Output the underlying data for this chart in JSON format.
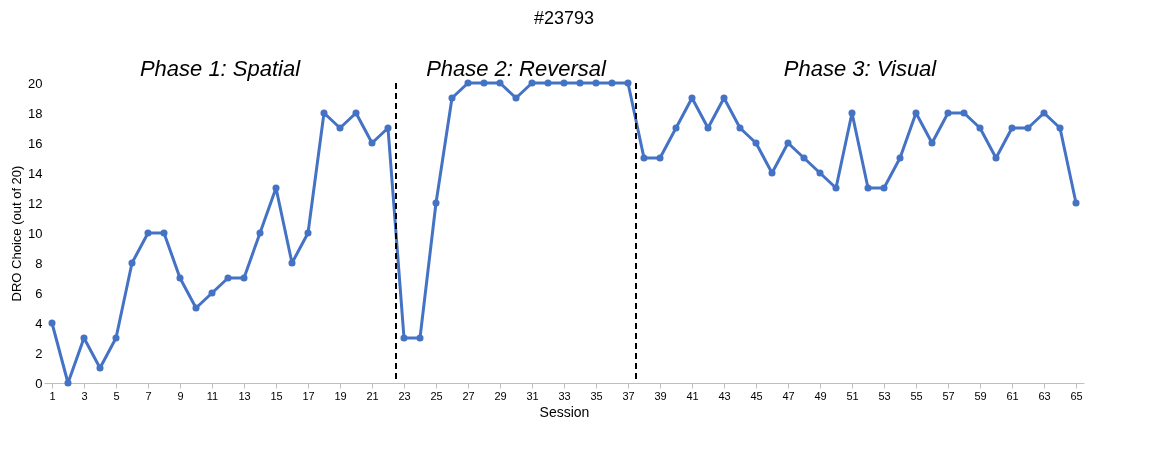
{
  "chart_data": {
    "type": "line",
    "title": "#23793",
    "xlabel": "Session",
    "ylabel": "DRO Choice (out of 20)",
    "x": [
      1,
      2,
      3,
      4,
      5,
      6,
      7,
      8,
      9,
      10,
      11,
      12,
      13,
      14,
      15,
      16,
      17,
      18,
      19,
      20,
      21,
      22,
      23,
      24,
      25,
      26,
      27,
      28,
      29,
      30,
      31,
      32,
      33,
      34,
      35,
      36,
      37,
      38,
      39,
      40,
      41,
      42,
      43,
      44,
      45,
      46,
      47,
      48,
      49,
      50,
      51,
      52,
      53,
      54,
      55,
      56,
      57,
      58,
      59,
      60,
      61,
      62,
      63,
      64,
      65
    ],
    "series": [
      {
        "color": "#4472c4",
        "values": [
          4,
          0,
          3,
          1,
          3,
          8,
          10,
          10,
          7,
          5,
          6,
          7,
          7,
          10,
          13,
          8,
          10,
          18,
          17,
          18,
          16,
          17,
          3,
          3,
          12,
          19,
          20,
          20,
          20,
          19,
          20,
          20,
          20,
          20,
          20,
          20,
          20,
          15,
          15,
          17,
          19,
          17,
          19,
          17,
          16,
          14,
          16,
          15,
          14,
          13,
          18,
          13,
          13,
          15,
          18,
          16,
          18,
          18,
          17,
          15,
          17,
          17,
          18,
          17,
          12
        ]
      }
    ],
    "xlim": [
      0.5,
      65.5
    ],
    "xticks": [
      1,
      3,
      5,
      7,
      9,
      11,
      13,
      15,
      17,
      19,
      21,
      23,
      25,
      27,
      29,
      31,
      33,
      35,
      37,
      39,
      41,
      43,
      45,
      47,
      49,
      51,
      53,
      55,
      57,
      59,
      61,
      63,
      65
    ],
    "ylim": [
      0,
      20
    ],
    "yticks": [
      0,
      2,
      4,
      6,
      8,
      10,
      12,
      14,
      16,
      18,
      20
    ],
    "ref_lines": [
      {
        "axis": "x",
        "value": 22.5,
        "color": "#000000",
        "line_style": "dashed"
      },
      {
        "axis": "x",
        "value": 37.5,
        "color": "#000000",
        "line_style": "dashed"
      }
    ],
    "annotations": [
      "Phase 1: Spatial",
      "Phase 2: Reversal",
      "Phase 3: Visual"
    ],
    "marker": "circle",
    "line_style": "solid",
    "grid": false,
    "legend": false
  }
}
